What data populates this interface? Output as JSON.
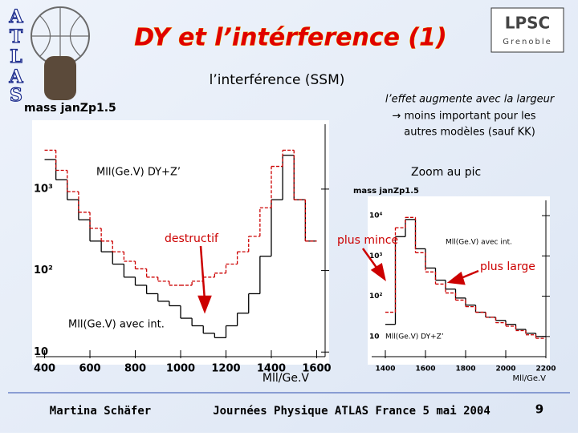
{
  "header": {
    "title": "DY et l’intérference (1)",
    "subtitle": "l’interférence (SSM)",
    "atlas_logo": [
      "A",
      "T",
      "L",
      "A",
      "S"
    ],
    "lpsc_logo": "LPSC",
    "lpsc_city": "Grenoble"
  },
  "side_note": [
    "l’effet augmente avec la largeur",
    "→ moins important pour les",
    "autres modèles (sauf KK)"
  ],
  "annotations": [
    "destructif",
    "Zoom au pic",
    "plus mince",
    "plus large"
  ],
  "footer": {
    "author": "Martina Schäfer",
    "event": "Journées Physique ATLAS France 5 mai 2004",
    "page": "9"
  },
  "chart_data": [
    {
      "type": "histogram",
      "title": "mass janZp1.5",
      "x_label": "Mll/Ge.V",
      "log_y": true,
      "bins": [
        400,
        450,
        500,
        550,
        600,
        650,
        700,
        750,
        800,
        850,
        900,
        950,
        1000,
        1050,
        1100,
        1150,
        1200,
        1250,
        1300,
        1350,
        1400,
        1450,
        1500,
        1550,
        1600
      ],
      "series": [
        {
          "name": "Mll(Ge.V) avec int.",
          "color": "#000000",
          "linestyle": "solid",
          "values": [
            2300,
            1300,
            740,
            420,
            230,
            170,
            120,
            83,
            66,
            52,
            42,
            37,
            26,
            21,
            17,
            15,
            21,
            30,
            52,
            150,
            740,
            2600,
            740,
            230
          ]
        },
        {
          "name": "Mll(Ge.V) DY+Z’",
          "color": "#cc0000",
          "linestyle": "dashed",
          "values": [
            3000,
            1700,
            930,
            520,
            330,
            230,
            170,
            130,
            105,
            83,
            74,
            66,
            66,
            74,
            83,
            93,
            120,
            170,
            263,
            590,
            1900,
            3000,
            740,
            230
          ]
        }
      ],
      "xlim": [
        345,
        1655
      ],
      "xticks": [
        400,
        600,
        800,
        1000,
        1200,
        1400,
        1600
      ],
      "ylim": [
        7,
        7000
      ],
      "yticks": [
        10,
        {
          "value": 100,
          "label": "10²"
        },
        {
          "value": 1000,
          "label": "10³"
        }
      ]
    },
    {
      "type": "histogram",
      "title": "mass janZp1.5",
      "x_label": "Mll/Ge.V",
      "log_y": true,
      "bins": [
        1400,
        1450,
        1500,
        1550,
        1600,
        1650,
        1700,
        1750,
        1800,
        1850,
        1900,
        1950,
        2000,
        2050,
        2100,
        2150,
        2200
      ],
      "series": [
        {
          "name": "Mll(Ge.V) avec int.",
          "color": "#000000",
          "linestyle": "solid",
          "values": [
            20,
            3000,
            8000,
            1500,
            500,
            250,
            150,
            90,
            60,
            40,
            30,
            25,
            20,
            15,
            12,
            10
          ]
        },
        {
          "name": "Mll(Ge.V) DY+Z’",
          "color": "#cc0000",
          "linestyle": "dashed",
          "values": [
            40,
            5000,
            9000,
            1200,
            400,
            200,
            120,
            80,
            55,
            40,
            30,
            22,
            18,
            14,
            11,
            9
          ]
        }
      ],
      "xlim": [
        1312,
        2220
      ],
      "xticks": [
        1400,
        1600,
        1800,
        2000,
        2200
      ],
      "ylim": [
        2,
        30000
      ],
      "yticks": [
        10,
        {
          "value": 100,
          "label": "10²"
        },
        {
          "value": 1000,
          "label": "10³"
        },
        {
          "value": 10000,
          "label": "10⁴"
        }
      ]
    }
  ]
}
